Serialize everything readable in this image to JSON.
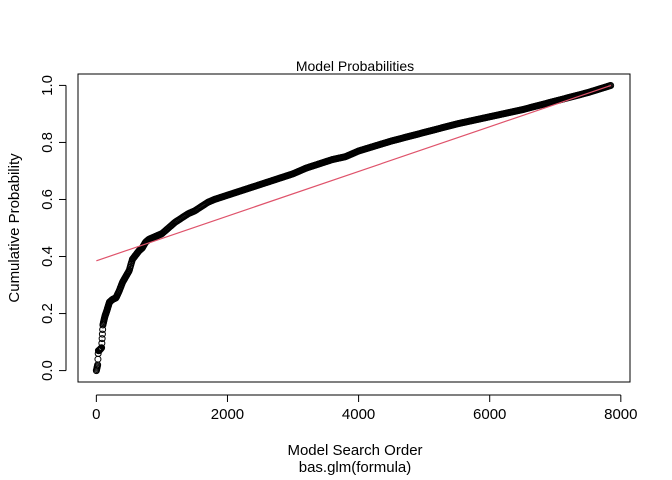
{
  "chart_data": {
    "type": "scatter",
    "title": "Model Probabilities",
    "xlabel": "Model Search Order",
    "subtitle": "bas.glm(formula)",
    "ylabel": "Cumulative Probability",
    "xlim": [
      -280,
      8140
    ],
    "ylim": [
      -0.04,
      1.04
    ],
    "xticks": [
      "0",
      "2000",
      "4000",
      "6000",
      "8000"
    ],
    "yticks": [
      "0.0",
      "0.2",
      "0.4",
      "0.6",
      "0.8",
      "1.0"
    ],
    "point_color": "#000000",
    "line_color": "#DF536B",
    "n_models": 7850,
    "curve_x": [
      0,
      10,
      20,
      30,
      40,
      60,
      80,
      100,
      130,
      160,
      200,
      250,
      300,
      350,
      400,
      450,
      500,
      550,
      600,
      650,
      700,
      750,
      800,
      900,
      1000,
      1100,
      1200,
      1300,
      1400,
      1500,
      1600,
      1700,
      1800,
      2000,
      2200,
      2400,
      2600,
      2800,
      3000,
      3200,
      3400,
      3600,
      3800,
      4000,
      4500,
      5000,
      5500,
      6000,
      6500,
      7000,
      7500,
      7850
    ],
    "curve_y": [
      0.0,
      0.01,
      0.02,
      0.07,
      0.07,
      0.075,
      0.08,
      0.16,
      0.19,
      0.21,
      0.24,
      0.25,
      0.255,
      0.28,
      0.31,
      0.33,
      0.35,
      0.39,
      0.405,
      0.42,
      0.43,
      0.45,
      0.46,
      0.47,
      0.48,
      0.5,
      0.52,
      0.535,
      0.55,
      0.56,
      0.575,
      0.59,
      0.6,
      0.615,
      0.63,
      0.645,
      0.66,
      0.675,
      0.69,
      0.71,
      0.725,
      0.74,
      0.75,
      0.77,
      0.805,
      0.835,
      0.865,
      0.89,
      0.915,
      0.945,
      0.975,
      1.0
    ],
    "fit_line": {
      "x": [
        0,
        7850
      ],
      "y": [
        0.385,
        1.0
      ]
    }
  }
}
